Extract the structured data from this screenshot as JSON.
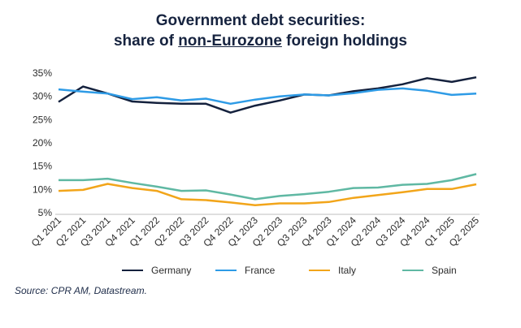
{
  "title_line1": "Government debt securities:",
  "title_line2_prefix": "share of ",
  "title_line2_underlined": "non-Eurozone",
  "title_line2_suffix": " foreign holdings",
  "source": "Source: CPR AM, Datastream.",
  "chart_data": {
    "type": "line",
    "title": "Government debt securities: share of non-Eurozone foreign holdings",
    "xlabel": "",
    "ylabel": "",
    "ylim": [
      5,
      35
    ],
    "yticks": [
      "5%",
      "10%",
      "15%",
      "20%",
      "25%",
      "30%",
      "35%"
    ],
    "grid": false,
    "legend": "bottom",
    "categories": [
      "Q1 2021",
      "Q2 2021",
      "Q3 2021",
      "Q4 2021",
      "Q1 2022",
      "Q2 2022",
      "Q3 2022",
      "Q4 2022",
      "Q1 2023",
      "Q2 2023",
      "Q3 2023",
      "Q4 2023",
      "Q1 2024",
      "Q2 2024",
      "Q3 2024",
      "Q4 2024",
      "Q1 2025",
      "Q2 2025"
    ],
    "series": [
      {
        "name": "Germany",
        "color": "#14213d",
        "values": [
          28.8,
          32.1,
          30.6,
          28.9,
          28.6,
          28.4,
          28.4,
          26.5,
          28.0,
          29.1,
          30.4,
          30.2,
          31.1,
          31.7,
          32.6,
          33.9,
          33.1,
          34.1
        ]
      },
      {
        "name": "France",
        "color": "#2e9be6",
        "values": [
          31.5,
          31.0,
          30.6,
          29.4,
          29.8,
          29.1,
          29.5,
          28.4,
          29.3,
          30.0,
          30.4,
          30.2,
          30.7,
          31.4,
          31.7,
          31.2,
          30.3,
          30.6
        ]
      },
      {
        "name": "Italy",
        "color": "#f2a51a",
        "values": [
          9.7,
          9.9,
          11.2,
          10.3,
          9.7,
          7.9,
          7.7,
          7.2,
          6.6,
          7.0,
          7.0,
          7.3,
          8.2,
          8.8,
          9.4,
          10.1,
          10.1,
          11.1
        ]
      },
      {
        "name": "Spain",
        "color": "#5fb8a3",
        "values": [
          12.0,
          12.0,
          12.3,
          11.4,
          10.6,
          9.7,
          9.8,
          8.9,
          7.9,
          8.6,
          9.0,
          9.5,
          10.3,
          10.4,
          11.0,
          11.2,
          12.0,
          13.3
        ]
      }
    ]
  }
}
